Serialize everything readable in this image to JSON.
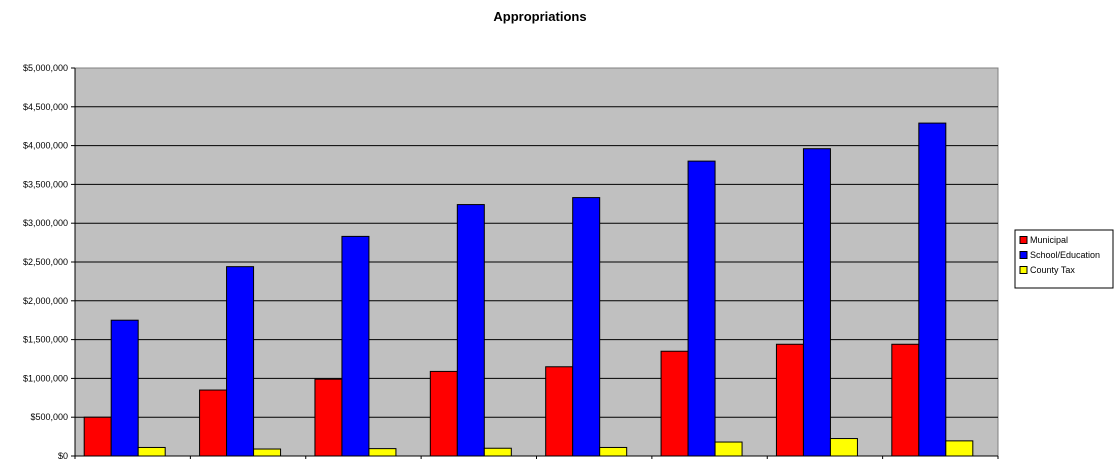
{
  "chart_data": {
    "type": "bar",
    "title": "Appropriations",
    "xlabel": "",
    "ylabel": "",
    "categories": [
      "",
      "",
      "",
      "",
      "",
      "",
      "",
      ""
    ],
    "ylim": [
      0,
      5000000
    ],
    "yticks": [
      {
        "value": 0,
        "label": "$0"
      },
      {
        "value": 500000,
        "label": "$500,000"
      },
      {
        "value": 1000000,
        "label": "$1,000,000"
      },
      {
        "value": 1500000,
        "label": "$1,500,000"
      },
      {
        "value": 2000000,
        "label": "$2,000,000"
      },
      {
        "value": 2500000,
        "label": "$2,500,000"
      },
      {
        "value": 3000000,
        "label": "$3,000,000"
      },
      {
        "value": 3500000,
        "label": "$3,500,000"
      },
      {
        "value": 4000000,
        "label": "$4,000,000"
      },
      {
        "value": 4500000,
        "label": "$4,500,000"
      },
      {
        "value": 5000000,
        "label": "$5,000,000"
      }
    ],
    "grid": true,
    "legend_position": "right",
    "plot_background": "#C0C0C0",
    "series": [
      {
        "name": "Municipal",
        "color": "#FF0000",
        "values": [
          500000,
          850000,
          990000,
          1090000,
          1150000,
          1350000,
          1440000,
          1440000
        ]
      },
      {
        "name": "School/Education",
        "color": "#0000FF",
        "values": [
          1750000,
          2440000,
          2830000,
          3240000,
          3330000,
          3800000,
          3960000,
          4290000
        ]
      },
      {
        "name": "County Tax",
        "color": "#FFFF00",
        "values": [
          110000,
          90000,
          95000,
          100000,
          110000,
          180000,
          225000,
          195000
        ]
      }
    ]
  }
}
